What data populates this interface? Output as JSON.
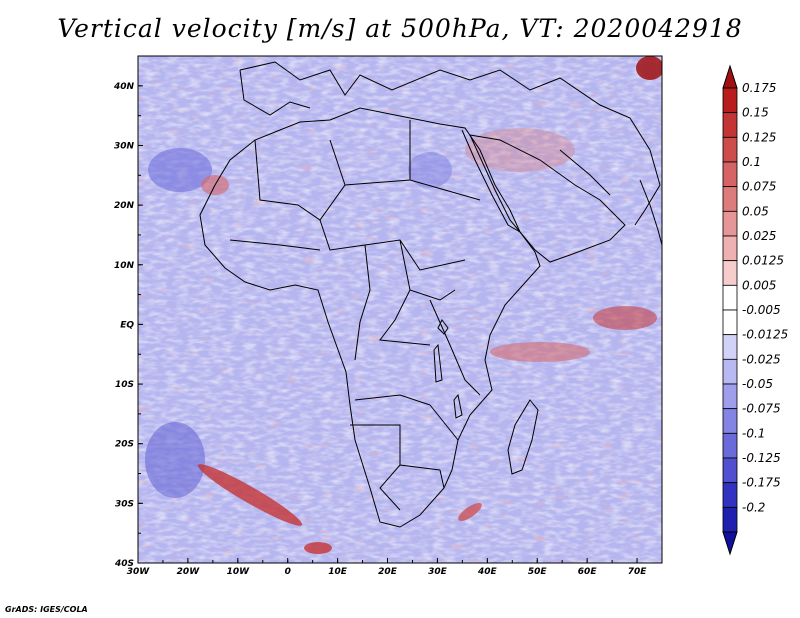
{
  "title": "Vertical velocity [m/s] at 500hPa, VT: 2020042918",
  "footer": "GrADS: IGES/COLA",
  "map": {
    "lon_range": [
      -30,
      75
    ],
    "lat_range": [
      -40,
      45
    ],
    "x_ticks": [
      "30W",
      "20W",
      "10W",
      "0",
      "10E",
      "20E",
      "30E",
      "40E",
      "50E",
      "60E",
      "70E"
    ],
    "x_tick_values": [
      -30,
      -20,
      -10,
      0,
      10,
      20,
      30,
      40,
      50,
      60,
      70
    ],
    "y_ticks": [
      "40N",
      "30N",
      "20N",
      "10N",
      "EQ",
      "10S",
      "20S",
      "30S",
      "40S"
    ],
    "y_tick_values": [
      40,
      30,
      20,
      10,
      0,
      -10,
      -20,
      -30,
      -40
    ]
  },
  "colorbar": {
    "labels": [
      "0.175",
      "0.15",
      "0.125",
      "0.1",
      "0.075",
      "0.05",
      "0.025",
      "0.0125",
      "0.005",
      "-0.005",
      "-0.0125",
      "-0.025",
      "-0.05",
      "-0.075",
      "-0.1",
      "-0.125",
      "-0.175",
      "-0.2"
    ],
    "colors": [
      "#b81c1c",
      "#c43434",
      "#cd4c4c",
      "#d66464",
      "#de7c7c",
      "#e69696",
      "#eeb0b0",
      "#f6cccc",
      "#ffffff",
      "#ffffff",
      "#d2d2f8",
      "#b8b8f2",
      "#9e9eec",
      "#8484e4",
      "#6a6ada",
      "#5050d0",
      "#3232c2",
      "#2020b0"
    ],
    "top_color": "#a01010",
    "bottom_color": "#1010a0"
  },
  "chart_data": {
    "type": "heatmap",
    "title": "Vertical velocity [m/s] at 500hPa, VT: 2020042918",
    "variable": "Vertical velocity",
    "units": "m/s",
    "level": "500hPa",
    "valid_time": "2020042918",
    "x_range": [
      -30,
      75
    ],
    "y_range": [
      -40,
      45
    ],
    "levels": [
      -0.2,
      -0.175,
      -0.125,
      -0.1,
      -0.075,
      -0.05,
      -0.025,
      -0.0125,
      -0.005,
      0.005,
      0.0125,
      0.025,
      0.05,
      0.075,
      0.1,
      0.125,
      0.15,
      0.175
    ]
  }
}
